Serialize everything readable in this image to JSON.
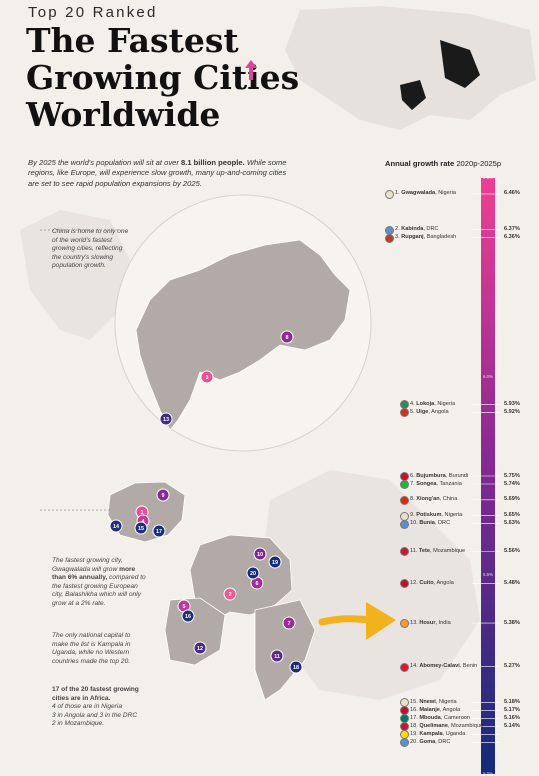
{
  "header": {
    "kicker": "Top 20 Ranked",
    "title_line1": "The Fastest",
    "title_line2": "Growing Cities",
    "title_line3": "Worldwide"
  },
  "intro": {
    "text_a": "By 2025 the world's population will sit at over ",
    "text_bold": "8.1 billion people.",
    "text_b": " While some regions, like Europe, will experience slow growth, many up-and-coming cities are set to see rapid population expansions by 2025."
  },
  "notes": {
    "china": "China is home to only one of the world's fastest growing cities, reflecting the country's slowing population growth.",
    "fastest_a": "The fastest growing city, Gwagwalada will grow ",
    "fastest_bold": "more than 6% annually,",
    "fastest_b": " compared to the fastest growing European city, Balashikha which will only grow at a 2% rate.",
    "capital": "The only national capital to make the list is Kampala in Uganda, while no Western countries made the top 20.",
    "africa_bold": "17 of the 20 fastest growing cities are in Africa.",
    "africa_list": [
      "4 of those are in Nigeria",
      "3 in Angola and 3 in the DRC",
      "2 in Mozambique."
    ]
  },
  "colors": {
    "background": "#f3efea",
    "gradient_top": "#ef3f93",
    "gradient_mid": "#8b2a93",
    "gradient_bottom": "#142b7a",
    "arrow": "#f2b21e",
    "land": "#b2aaa6"
  },
  "chart_data": {
    "type": "bar",
    "axis_title": "Annual growth rate",
    "axis_subtitle": "2020p-2025p",
    "ylim": [
      5.0,
      6.5
    ],
    "ticks": [
      "6.5%",
      "6.0%",
      "5.5%",
      "5.0%"
    ],
    "cities": [
      {
        "rank": "1",
        "name": "Gwagwalada",
        "country": "Nigeria",
        "value": 6.46,
        "label": "6.46%"
      },
      {
        "rank": "2",
        "name": "Kabinda",
        "country": "DRC",
        "value": 6.37,
        "label": "6.37%"
      },
      {
        "rank": "3",
        "name": "Rupganj",
        "country": "Bangladesh",
        "value": 6.36,
        "label": "6.36%"
      },
      {
        "rank": "4",
        "name": "Lokoja",
        "country": "Nigeria",
        "value": 5.93,
        "label": "5.93%"
      },
      {
        "rank": "5",
        "name": "Uige",
        "country": "Angola",
        "value": 5.92,
        "label": "5.92%"
      },
      {
        "rank": "6",
        "name": "Bujumbura",
        "country": "Burundi",
        "value": 5.75,
        "label": "5.75%"
      },
      {
        "rank": "7",
        "name": "Songea",
        "country": "Tanzania",
        "value": 5.74,
        "label": "5.74%"
      },
      {
        "rank": "8",
        "name": "Xiong'an",
        "country": "China",
        "value": 5.69,
        "label": "5.69%"
      },
      {
        "rank": "9",
        "name": "Potiskum",
        "country": "Nigeria",
        "value": 5.65,
        "label": "5.65%"
      },
      {
        "rank": "10",
        "name": "Bunia",
        "country": "DRC",
        "value": 5.63,
        "label": "5.63%"
      },
      {
        "rank": "11",
        "name": "Tete",
        "country": "Mozambique",
        "value": 5.56,
        "label": "5.56%"
      },
      {
        "rank": "12",
        "name": "Cuito",
        "country": "Angola",
        "value": 5.48,
        "label": "5.48%"
      },
      {
        "rank": "13",
        "name": "Hosur",
        "country": "India",
        "value": 5.38,
        "label": "5.38%"
      },
      {
        "rank": "14",
        "name": "Abomey-Calavi",
        "country": "Benin",
        "value": 5.27,
        "label": "5.27%"
      },
      {
        "rank": "15",
        "name": "Nnewi",
        "country": "Nigeria",
        "value": 5.18,
        "label": "5.18%"
      },
      {
        "rank": "16",
        "name": "Malanje",
        "country": "Angola",
        "value": 5.17,
        "label": "5.17%"
      },
      {
        "rank": "17",
        "name": "Mbouda",
        "country": "Cameroon",
        "value": 5.16,
        "label": "5.16%"
      },
      {
        "rank": "18",
        "name": "Quelimane",
        "country": "Mozambique",
        "value": 5.14,
        "label": "5.14%"
      },
      {
        "rank": "19",
        "name": "Kampala",
        "country": "Uganda",
        "value": null,
        "label": ""
      },
      {
        "rank": "20",
        "name": "Goma",
        "country": "DRC",
        "value": null,
        "label": ""
      }
    ],
    "flag_colors": [
      "#e8e1c6",
      "#5c8fd0",
      "#c0392b",
      "#2e8b57",
      "#d62d20",
      "#c8102e",
      "#1eb53a",
      "#de2910",
      "#e8e1c6",
      "#5c8fd0",
      "#d21034",
      "#cc092f",
      "#ff9933",
      "#e8112d",
      "#e8e1c6",
      "#cc092f",
      "#007a5e",
      "#d21034",
      "#fcdc04",
      "#5c8fd0"
    ],
    "map_markers": [
      {
        "rank": "1",
        "color": "#ef4a99"
      },
      {
        "rank": "2",
        "color": "#ee5b91"
      },
      {
        "rank": "3",
        "color": "#ec4f8f"
      },
      {
        "rank": "4",
        "color": "#c33b95"
      },
      {
        "rank": "5",
        "color": "#c0399a"
      },
      {
        "rank": "6",
        "color": "#9f2f95"
      },
      {
        "rank": "7",
        "color": "#9a2d94"
      },
      {
        "rank": "8",
        "color": "#8e2a93"
      },
      {
        "rank": "9",
        "color": "#852993"
      },
      {
        "rank": "10",
        "color": "#7f2891"
      },
      {
        "rank": "11",
        "color": "#5a2b89"
      },
      {
        "rank": "12",
        "color": "#4a2c85"
      },
      {
        "rank": "13",
        "color": "#3a2d82"
      },
      {
        "rank": "14",
        "color": "#24307f"
      },
      {
        "rank": "15",
        "color": "#1f2f7e"
      },
      {
        "rank": "16",
        "color": "#1d2e7d"
      },
      {
        "rank": "17",
        "color": "#1c2d7c"
      },
      {
        "rank": "18",
        "color": "#1a2c7b"
      },
      {
        "rank": "19",
        "color": "#182b7a"
      },
      {
        "rank": "20",
        "color": "#172b7a"
      }
    ]
  }
}
